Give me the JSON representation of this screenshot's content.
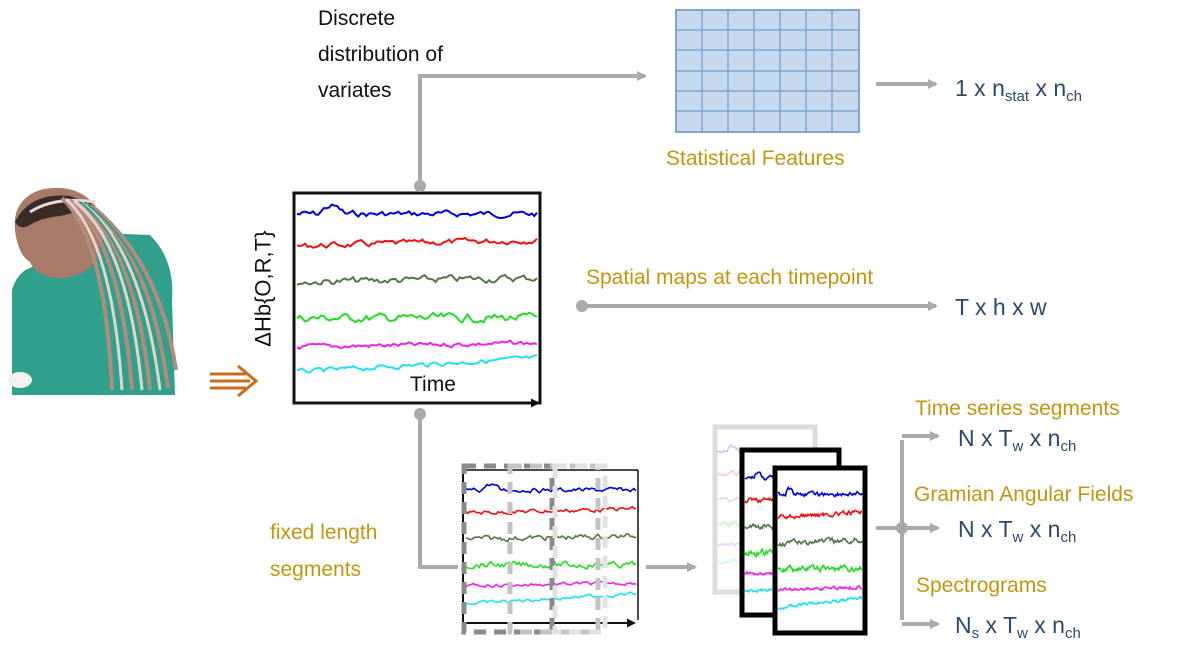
{
  "labels": {
    "discrete_line1": "Discrete",
    "discrete_line2": "distribution of",
    "discrete_line3": "variates",
    "statistical_features": "Statistical Features",
    "spatial_maps": "Spatial maps at each timepoint",
    "fixed_length_line1": "fixed length",
    "fixed_length_line2": "segments",
    "time_series_segments": "Time series segments",
    "gramian_angular_fields": "Gramian Angular Fields",
    "spectrograms": "Spectrograms",
    "y_axis": "ΔHb{O,R,T}",
    "x_axis": "Time"
  },
  "outputs": {
    "stat": {
      "a": "1 x n",
      "a_sub": "stat",
      "b": " x n",
      "b_sub": "ch"
    },
    "spatial": {
      "text": "T x h x w"
    },
    "ts": {
      "a": "N x T",
      "a_sub": "w",
      "b": " x n",
      "b_sub": "ch"
    },
    "gaf": {
      "a": "N x T",
      "a_sub": "w",
      "b": " x n",
      "b_sub": "ch"
    },
    "spec": {
      "pre": "N",
      "pre_sub": "s",
      "a": " x T",
      "a_sub": "w",
      "b": " x n",
      "b_sub": "ch"
    }
  },
  "signal_colors": [
    "#0000dd",
    "#ee1111",
    "#557744",
    "#22dd22",
    "#ee22ee",
    "#22e0f0"
  ],
  "colors": {
    "arrow": "#aaaaaa",
    "label_gold": "#c2960f",
    "output_navy": "#2b4a6f",
    "grid_fill": "#c7d9ec",
    "grid_line": "#7fa7cd",
    "input_arrow": "#cc6a1a"
  },
  "icons": [
    "person-illustration",
    "input-triple-arrow-icon"
  ]
}
